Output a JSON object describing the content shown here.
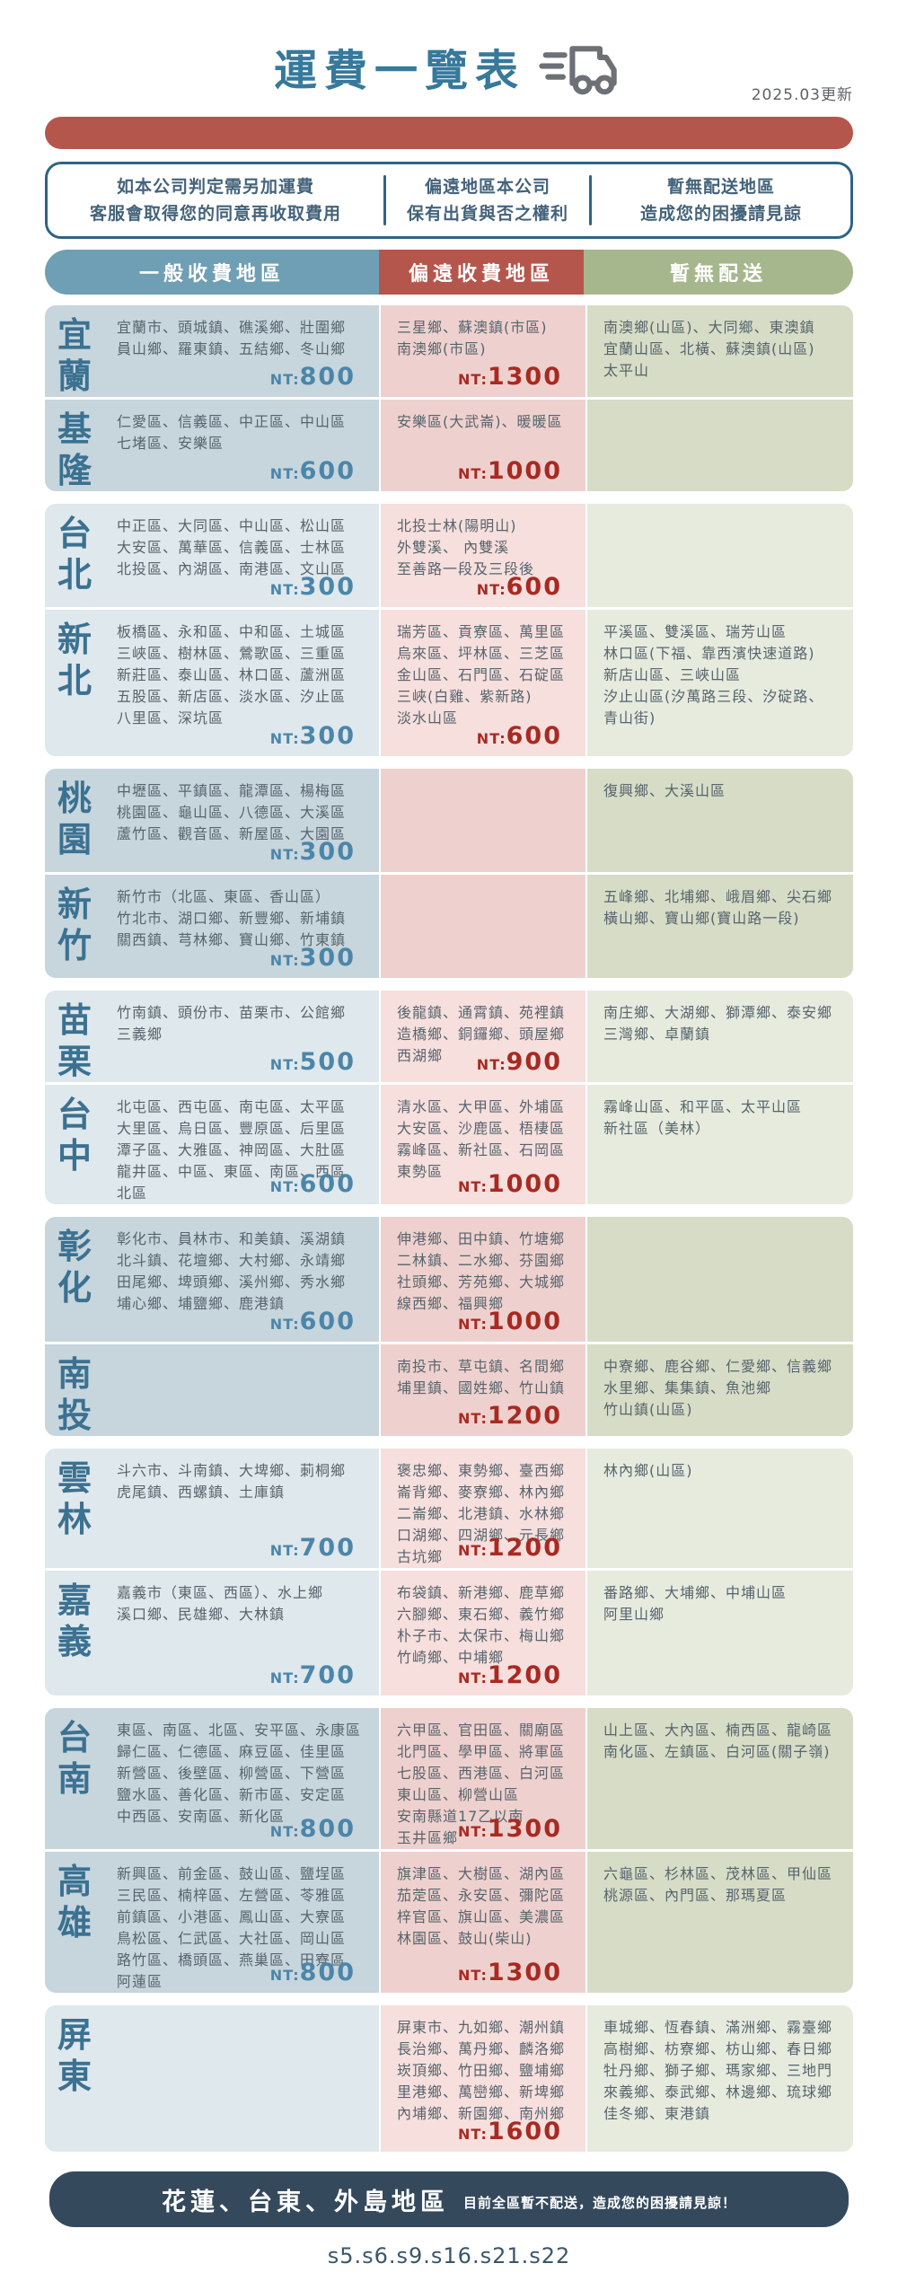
{
  "page": {
    "title": "運費一覽表",
    "updated": "2025.03更新",
    "footer_code": "s5.s6.s9.s16.s21.s22"
  },
  "notices": [
    {
      "line1": "如本公司判定需另加運費",
      "line2": "客服會取得您的同意再收取費用"
    },
    {
      "line1": "偏遠地區本公司",
      "line2": "保有出貨與否之權利"
    },
    {
      "line1": "暫無配送地區",
      "line2": "造成您的困擾請見諒"
    }
  ],
  "columns": [
    {
      "key": "general",
      "label": "一般收費地區",
      "color": "#6f9fb4"
    },
    {
      "key": "remote",
      "label": "偏遠收費地區",
      "color": "#b5564c"
    },
    {
      "key": "none",
      "label": "暫無配送",
      "color": "#a6b78d"
    }
  ],
  "currency_prefix": "NT:",
  "colors": {
    "title_blue": "#37799b",
    "accent_red": "#b5564c",
    "header_blue": "#6f9fb4",
    "header_green": "#a6b78d",
    "price_blue": "#4b86aa",
    "price_red": "#a82a22",
    "bottom_bar": "#35495c",
    "dark_tone": {
      "blue": "#c7d5dd",
      "pink": "#eed1ce",
      "green": "#d7dcc6"
    },
    "light_tone": {
      "blue": "#dfe8ec",
      "pink": "#f6dfdd",
      "green": "#e7ebde"
    }
  },
  "groups": [
    {
      "tone": "dark",
      "rows": [
        {
          "region": "宜蘭",
          "general": {
            "lines": [
              "宜蘭市、頭城鎮、礁溪鄉、壯圍鄉",
              "員山鄉、羅東鎮、五結鄉、冬山鄉"
            ],
            "price": "800"
          },
          "remote": {
            "lines": [
              "三星鄉、蘇澳鎮(市區)",
              "南澳鄉(市區)"
            ],
            "price": "1300"
          },
          "none": {
            "lines": [
              "南澳鄉(山區)、大同鄉、東澳鎮",
              "宜蘭山區、北橫、蘇澳鎮(山區)",
              "太平山"
            ]
          }
        },
        {
          "region": "基隆",
          "general": {
            "lines": [
              "仁愛區、信義區、中正區、中山區",
              "七堵區、安樂區"
            ],
            "price": "600"
          },
          "remote": {
            "lines": [
              "安樂區(大武崙)、暖暖區"
            ],
            "price": "1000"
          },
          "none": {
            "lines": []
          }
        }
      ]
    },
    {
      "tone": "light",
      "rows": [
        {
          "region": "台北",
          "general": {
            "lines": [
              "中正區、大同區、中山區、松山區",
              "大安區、萬華區、信義區、士林區",
              "北投區、內湖區、南港區、文山區"
            ],
            "price": "300"
          },
          "remote": {
            "lines": [
              "北投士林(陽明山)",
              "外雙溪、 內雙溪",
              "至善路一段及三段後"
            ],
            "price": "600"
          },
          "none": {
            "lines": []
          }
        },
        {
          "region": "新北",
          "general": {
            "lines": [
              "板橋區、永和區、中和區、土城區",
              "三峽區、樹林區、鶯歌區、三重區",
              "新莊區、泰山區、林口區、蘆洲區",
              "五股區、新店區、淡水區、汐止區",
              "八里區、深坑區"
            ],
            "price": "300"
          },
          "remote": {
            "lines": [
              "瑞芳區、貢寮區、萬里區",
              "烏來區、坪林區、三芝區",
              "金山區、石門區、石碇區",
              "三峽(白雞、紫新路)",
              "淡水山區"
            ],
            "price": "600"
          },
          "none": {
            "lines": [
              "平溪區、雙溪區、瑞芳山區",
              "林口區(下福、靠西濱快速道路)",
              "新店山區、三峽山區",
              "汐止山區(汐萬路三段、汐碇路、",
              "青山街)"
            ]
          }
        }
      ]
    },
    {
      "tone": "dark",
      "rows": [
        {
          "region": "桃園",
          "general": {
            "lines": [
              "中壢區、平鎮區、龍潭區、楊梅區",
              "桃園區、龜山區、八德區、大溪區",
              "蘆竹區、觀音區、新屋區、大園區"
            ],
            "price": "300"
          },
          "remote": {
            "lines": []
          },
          "none": {
            "lines": [
              "復興鄉、大溪山區"
            ]
          }
        },
        {
          "region": "新竹",
          "general": {
            "lines": [
              "新竹市（北區、東區、香山區）",
              "竹北市、湖口鄉、新豐鄉、新埔鎮",
              "關西鎮、芎林鄉、寶山鄉、竹東鎮"
            ],
            "price": "300"
          },
          "remote": {
            "lines": []
          },
          "none": {
            "lines": [
              "五峰鄉、北埔鄉、峨眉鄉、尖石鄉",
              "橫山鄉、寶山鄉(寶山路一段)"
            ]
          }
        }
      ]
    },
    {
      "tone": "light",
      "rows": [
        {
          "region": "苗栗",
          "general": {
            "lines": [
              "竹南鎮、頭份市、苗栗市、公館鄉",
              "三義鄉"
            ],
            "price": "500"
          },
          "remote": {
            "lines": [
              "後龍鎮、通霄鎮、苑裡鎮",
              "造橋鄉、銅鑼鄉、頭屋鄉",
              "西湖鄉"
            ],
            "price": "900"
          },
          "none": {
            "lines": [
              "南庄鄉、大湖鄉、獅潭鄉、泰安鄉",
              "三灣鄉、卓蘭鎮"
            ]
          }
        },
        {
          "region": "台中",
          "general": {
            "lines": [
              "北屯區、西屯區、南屯區、太平區",
              "大里區、烏日區、豐原區、后里區",
              "潭子區、大雅區、神岡區、大肚區",
              "龍井區、中區、東區、南區、西區",
              "北區"
            ],
            "price": "600"
          },
          "remote": {
            "lines": [
              "清水區、大甲區、外埔區",
              "大安區、沙鹿區、梧棲區",
              "霧峰區、新社區、石岡區",
              "東勢區"
            ],
            "price": "1000"
          },
          "none": {
            "lines": [
              "霧峰山區、和平區、太平山區",
              "新社區（美林）"
            ]
          }
        }
      ]
    },
    {
      "tone": "dark",
      "rows": [
        {
          "region": "彰化",
          "general": {
            "lines": [
              "彰化市、員林市、和美鎮、溪湖鎮",
              "北斗鎮、花壇鄉、大村鄉、永靖鄉",
              "田尾鄉、埤頭鄉、溪州鄉、秀水鄉",
              "埔心鄉、埔鹽鄉、鹿港鎮"
            ],
            "price": "600"
          },
          "remote": {
            "lines": [
              "伸港鄉、田中鎮、竹塘鄉",
              "二林鎮、二水鄉、芬園鄉",
              "社頭鄉、芳苑鄉、大城鄉",
              "線西鄉、福興鄉"
            ],
            "price": "1000"
          },
          "none": {
            "lines": []
          }
        },
        {
          "region": "南投",
          "general": {
            "lines": []
          },
          "remote": {
            "lines": [
              "南投市、草屯鎮、名間鄉",
              "埔里鎮、國姓鄉、竹山鎮"
            ],
            "price": "1200"
          },
          "none": {
            "lines": [
              "中寮鄉、鹿谷鄉、仁愛鄉、信義鄉",
              "水里鄉、集集鎮、魚池鄉",
              "竹山鎮(山區)"
            ]
          }
        }
      ]
    },
    {
      "tone": "light",
      "rows": [
        {
          "region": "雲林",
          "general": {
            "lines": [
              "斗六市、斗南鎮、大埤鄉、莿桐鄉",
              "虎尾鎮、西螺鎮、土庫鎮"
            ],
            "price": "700"
          },
          "remote": {
            "lines": [
              "褒忠鄉、東勢鄉、臺西鄉",
              "崙背鄉、麥寮鄉、林內鄉",
              "二崙鄉、北港鎮、水林鄉",
              "口湖鄉、四湖鄉、元長鄉",
              "古坑鄉"
            ],
            "price": "1200"
          },
          "none": {
            "lines": [
              "林內鄉(山區)"
            ]
          }
        },
        {
          "region": "嘉義",
          "general": {
            "lines": [
              "嘉義市（東區、西區）、水上鄉",
              "溪口鄉、民雄鄉、大林鎮"
            ],
            "price": "700"
          },
          "remote": {
            "lines": [
              "布袋鎮、新港鄉、鹿草鄉",
              "六腳鄉、東石鄉、義竹鄉",
              "朴子市、太保市、梅山鄉",
              "竹崎鄉、中埔鄉"
            ],
            "price": "1200"
          },
          "none": {
            "lines": [
              "番路鄉、大埔鄉、中埔山區",
              "阿里山鄉"
            ]
          }
        }
      ]
    },
    {
      "tone": "dark",
      "rows": [
        {
          "region": "台南",
          "general": {
            "lines": [
              "東區、南區、北區、安平區、永康區",
              "歸仁區、仁德區、麻豆區、佳里區",
              "新營區、後壁區、柳營區、下營區",
              "鹽水區、善化區、新市區、安定區",
              "中西區、安南區、新化區"
            ],
            "price": "800"
          },
          "remote": {
            "lines": [
              "六甲區、官田區、關廟區",
              "北門區、學甲區、將軍區",
              "七股區、西港區、白河區",
              "東山區、柳營山區",
              "安南縣道17乙以南",
              "玉井區鄉"
            ],
            "price": "1300"
          },
          "none": {
            "lines": [
              "山上區、大內區、楠西區、龍崎區",
              "南化區、左鎮區、白河區(關子嶺)"
            ]
          }
        },
        {
          "region": "高雄",
          "general": {
            "lines": [
              "新興區、前金區、鼓山區、鹽埕區",
              "三民區、楠梓區、左營區、苓雅區",
              "前鎮區、小港區、鳳山區、大寮區",
              "鳥松區、仁武區、大社區、岡山區",
              "路竹區、橋頭區、燕巢區、田寮區",
              "阿蓮區"
            ],
            "price": "800"
          },
          "remote": {
            "lines": [
              "旗津區、大樹區、湖內區",
              "茄萣區、永安區、彌陀區",
              "梓官區、旗山區、美濃區",
              "林園區、鼓山(柴山)"
            ],
            "price": "1300"
          },
          "none": {
            "lines": [
              "六龜區、杉林區、茂林區、甲仙區",
              "桃源區、內門區、那瑪夏區"
            ]
          }
        }
      ]
    },
    {
      "tone": "light",
      "rows": [
        {
          "region": "屏東",
          "general": {
            "lines": []
          },
          "remote": {
            "lines": [
              "屏東市、九如鄉、潮州鎮",
              "長治鄉、萬丹鄉、麟洛鄉",
              "崁頂鄉、竹田鄉、鹽埔鄉",
              "里港鄉、萬巒鄉、新埤鄉",
              "內埔鄉、新園鄉、南州鄉"
            ],
            "price": "1600"
          },
          "none": {
            "lines": [
              "車城鄉、恆春鎮、滿洲鄉、霧臺鄉",
              "高樹鄉、枋寮鄉、枋山鄉、春日鄉",
              "牡丹鄉、獅子鄉、瑪家鄉、三地門",
              "來義鄉、泰武鄉、林邊鄉、琉球鄉",
              "佳冬鄉、東港鎮"
            ]
          }
        }
      ]
    }
  ],
  "bottom_bar": {
    "title": "花蓮、台東、外島地區",
    "note": "目前全區暫不配送，造成您的困擾請見諒！"
  }
}
